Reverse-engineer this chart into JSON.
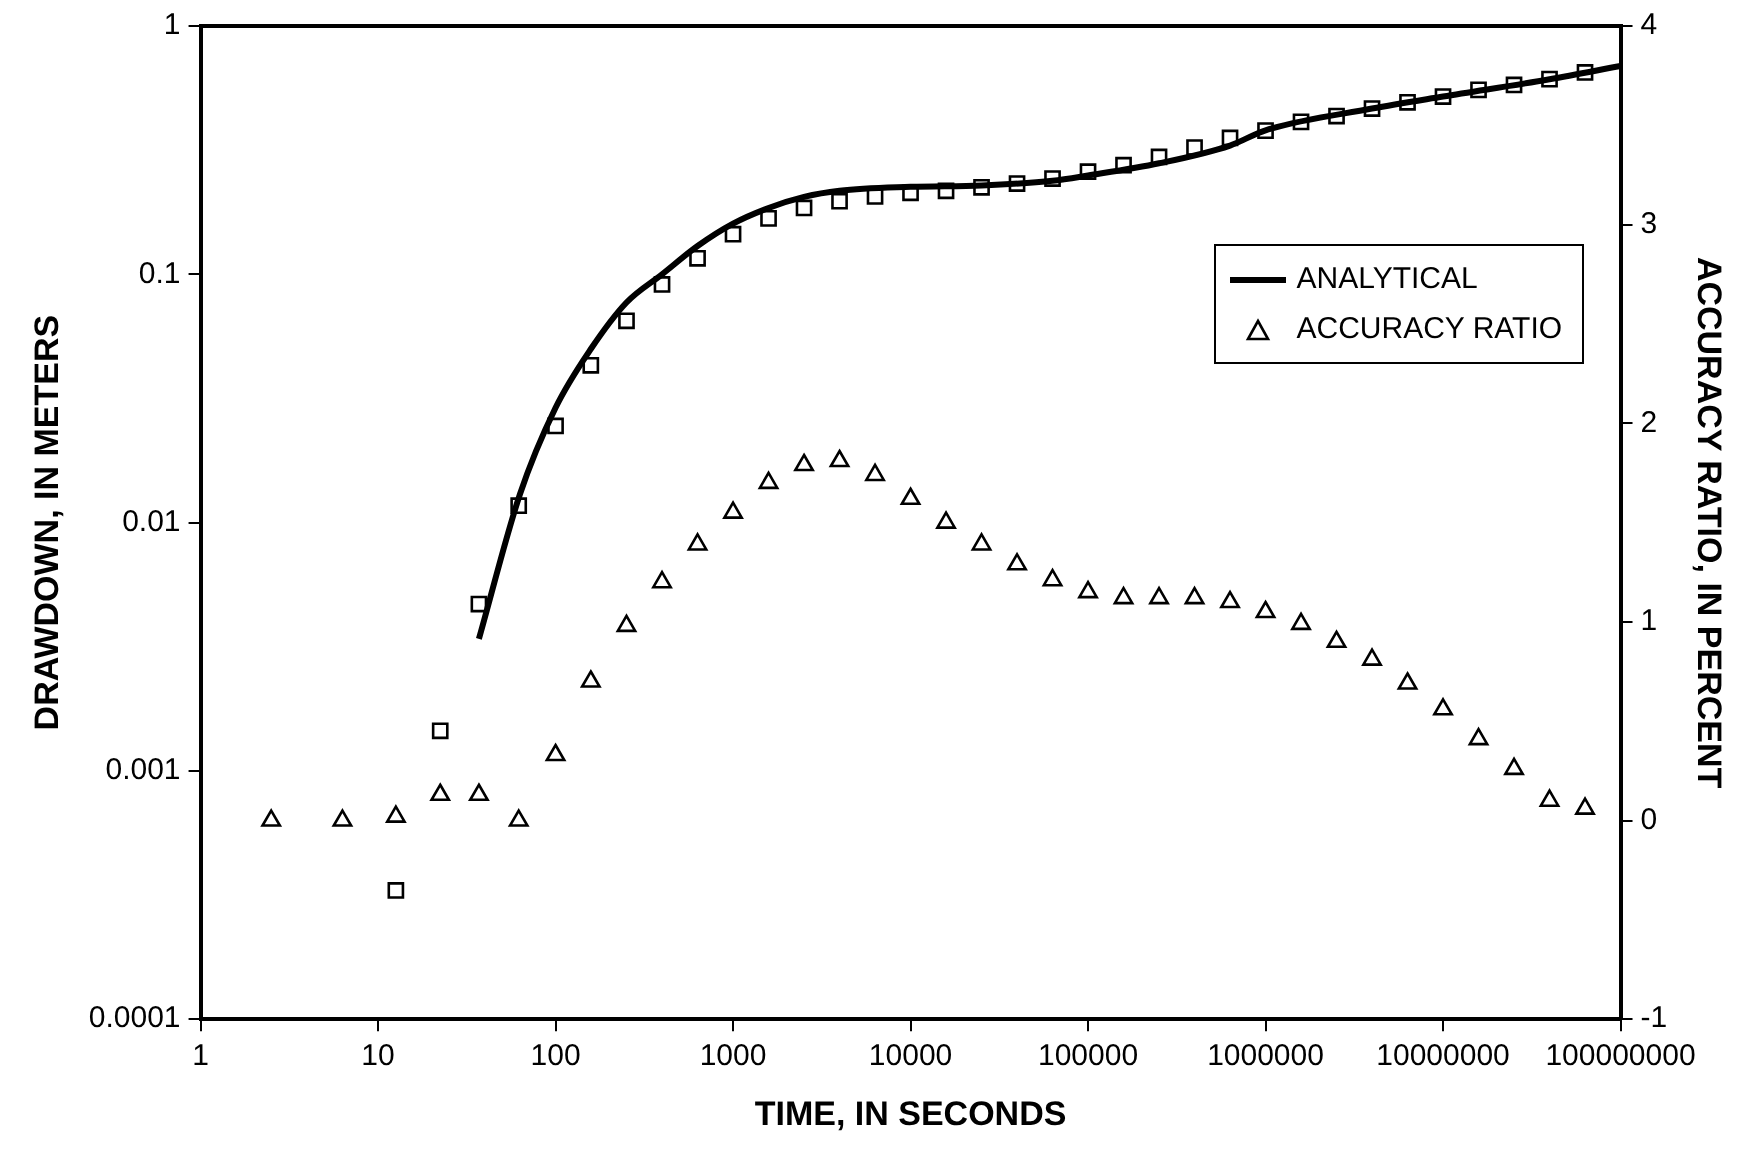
{
  "chart_data": {
    "type": "scatter",
    "xlabel": "TIME, IN SECONDS",
    "ylabel": "DRAWDOWN, IN METERS",
    "y2label": "ACCURACY RATIO, IN PERCENT",
    "log": "xy",
    "grid": false,
    "legend": "right",
    "xlim": [
      1,
      100000000
    ],
    "xticks": [
      1,
      10,
      100,
      1000,
      10000,
      100000,
      1000000,
      10000000,
      100000000
    ],
    "ylim": [
      0.0001,
      1
    ],
    "yticks": [
      0.0001,
      0.001,
      0.01,
      0.1,
      1
    ],
    "y2lim": [
      -1,
      4
    ],
    "y2ticks": [
      -1,
      0,
      1,
      2,
      3,
      4
    ],
    "series": [
      {
        "name": "ANALYTICAL",
        "type": "line",
        "marker": "none",
        "line_style": "solid",
        "color": "#000000",
        "x": [
          37,
          63,
          100,
          158,
          251,
          398,
          631,
          1000,
          1585,
          2512,
          3981,
          10000,
          25119,
          63096,
          100000,
          251189,
          631000,
          1000000,
          3981000,
          10000000,
          39810000,
          100000000
        ],
        "values": [
          0.0034,
          0.013,
          0.029,
          0.05,
          0.077,
          0.1,
          0.13,
          0.16,
          0.185,
          0.205,
          0.217,
          0.225,
          0.228,
          0.238,
          0.25,
          0.28,
          0.33,
          0.38,
          0.465,
          0.52,
          0.61,
          0.69
        ]
      },
      {
        "type": "scatter",
        "marker": "square",
        "color": "#000000",
        "x": [
          12.6,
          22.4,
          37,
          62,
          100,
          158,
          251,
          398,
          631,
          1000,
          1585,
          2512,
          3981,
          6310,
          10000,
          15849,
          25119,
          39811,
          63096,
          100000,
          158489,
          251189,
          398107,
          630957,
          1000000,
          1584893,
          2511886,
          3981072,
          6309573,
          10000000,
          15848932,
          25118864,
          39810717,
          63095734
        ],
        "values": [
          0.00033,
          0.00145,
          0.0047,
          0.0117,
          0.0245,
          0.043,
          0.065,
          0.091,
          0.116,
          0.145,
          0.168,
          0.185,
          0.197,
          0.206,
          0.213,
          0.217,
          0.224,
          0.232,
          0.243,
          0.259,
          0.275,
          0.297,
          0.324,
          0.354,
          0.379,
          0.411,
          0.434,
          0.465,
          0.493,
          0.52,
          0.553,
          0.579,
          0.611,
          0.65
        ]
      },
      {
        "name": "ACCURACY RATIO",
        "type": "scatter",
        "marker": "triangle",
        "axis": "y2",
        "color": "#000000",
        "x": [
          2.5,
          6.3,
          12.6,
          22.4,
          37,
          62,
          100,
          158,
          251,
          398,
          631,
          1000,
          1585,
          2512,
          3981,
          6310,
          10000,
          15849,
          25119,
          39811,
          63096,
          100000,
          158489,
          251189,
          398107,
          630957,
          1000000,
          1584893,
          2511886,
          3981072,
          6309573,
          10000000,
          15848932,
          25118864,
          39810717,
          63095734
        ],
        "values": [
          0,
          0,
          0.02,
          0.13,
          0.13,
          0,
          0.33,
          0.7,
          0.98,
          1.2,
          1.39,
          1.55,
          1.7,
          1.79,
          1.81,
          1.74,
          1.62,
          1.5,
          1.39,
          1.29,
          1.21,
          1.15,
          1.12,
          1.12,
          1.12,
          1.1,
          1.05,
          0.99,
          0.9,
          0.81,
          0.69,
          0.56,
          0.41,
          0.26,
          0.1,
          0.06
        ]
      }
    ]
  }
}
